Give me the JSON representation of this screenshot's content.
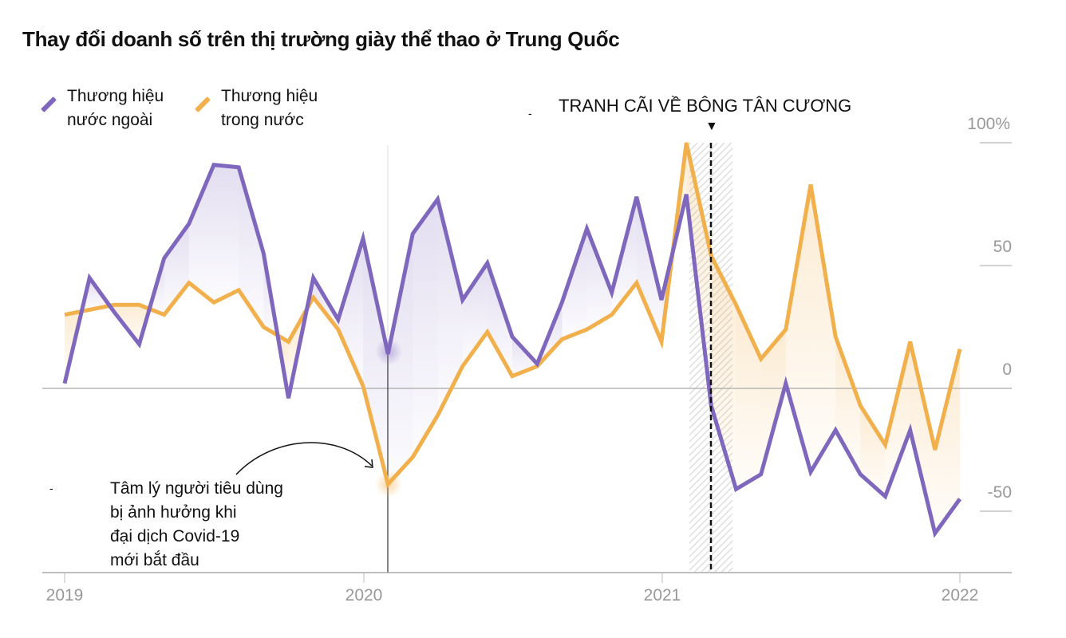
{
  "title": "Thay đổi doanh số trên thị trường giày thể thao ở Trung Quốc",
  "legend": [
    {
      "label_line1": "Thương hiệu",
      "label_line2": "nước ngoài",
      "color": "#7e67bd"
    },
    {
      "label_line1": "Thương hiệu",
      "label_line2": "trong nước",
      "color": "#f2b04d"
    }
  ],
  "annotations": {
    "xinjiang": "TRANH CÃI VỀ BÔNG TÂN CƯƠNG",
    "marker": "▼",
    "covid_line1": "Tâm lý người tiêu dùng",
    "covid_line2": "bị ảnh hưởng khi",
    "covid_line3": "đại dịch Covid-19",
    "covid_line4": "mới bắt đầu"
  },
  "y_ticks": [
    "100%",
    "50",
    "0",
    "-50"
  ],
  "x_ticks": [
    "2019",
    "2020",
    "2021",
    "2022"
  ],
  "chart_data": {
    "type": "line",
    "title": "Thay đổi doanh số trên thị trường giày thể thao ở Trung Quốc",
    "xlabel": "",
    "ylabel": "",
    "ylim": [
      -75,
      100
    ],
    "grid": "horizontal",
    "legend_position": "top-left",
    "x": [
      "2019-01",
      "2019-02",
      "2019-03",
      "2019-04",
      "2019-05",
      "2019-06",
      "2019-07",
      "2019-08",
      "2019-09",
      "2019-10",
      "2019-11",
      "2019-12",
      "2020-01",
      "2020-02",
      "2020-03",
      "2020-04",
      "2020-05",
      "2020-06",
      "2020-07",
      "2020-08",
      "2020-09",
      "2020-10",
      "2020-11",
      "2020-12",
      "2021-01",
      "2021-02",
      "2021-03",
      "2021-04",
      "2021-05",
      "2021-06",
      "2021-07",
      "2021-08",
      "2021-09",
      "2021-10",
      "2021-11",
      "2021-12",
      "2022-01"
    ],
    "series": [
      {
        "name": "Thương hiệu nước ngoài",
        "color": "#7e67bd",
        "values": [
          2,
          45,
          31,
          18,
          53,
          67,
          91,
          90,
          55,
          -4,
          45,
          28,
          61,
          14,
          63,
          77,
          36,
          51,
          21,
          10,
          35,
          65,
          39,
          78,
          36,
          79,
          -7,
          -41,
          -35,
          2,
          -34,
          -17,
          -35,
          -44,
          -17,
          -59,
          -45
        ]
      },
      {
        "name": "Thương hiệu trong nước",
        "color": "#f2b04d",
        "values": [
          30,
          32,
          34,
          34,
          30,
          43,
          35,
          40,
          25,
          19,
          37,
          24,
          1,
          -39,
          -28,
          -11,
          9,
          23,
          5,
          9,
          20,
          24,
          30,
          43,
          19,
          100,
          54,
          34,
          12,
          24,
          83,
          21,
          -7,
          -23,
          19,
          -25,
          16
        ]
      }
    ],
    "annotations": [
      {
        "text": "TRANH CÃI VỀ BÔNG TÂN CƯƠNG",
        "x": "2021-03",
        "style": "dashed vertical line with hatched band"
      },
      {
        "text": "Tâm lý người tiêu dùng bị ảnh hưởng khi đại dịch Covid-19 mới bắt đầu",
        "x": "2020-02",
        "style": "arrow"
      }
    ]
  }
}
